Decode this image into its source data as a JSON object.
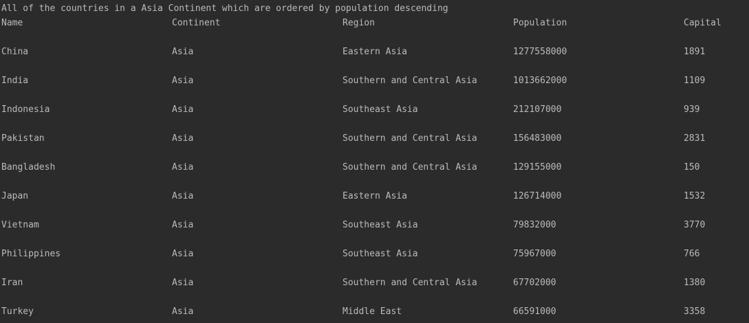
{
  "console": {
    "title_line": "All of the countries in a Asia Continent which are ordered by population descending",
    "headers": [
      "Name",
      "Continent",
      "Region",
      "Population",
      "Capital"
    ],
    "rows": [
      [
        "China",
        "Asia",
        "Eastern Asia",
        "1277558000",
        "1891"
      ],
      [
        "India",
        "Asia",
        "Southern and Central Asia",
        "1013662000",
        "1109"
      ],
      [
        "Indonesia",
        "Asia",
        "Southeast Asia",
        "212107000",
        "939"
      ],
      [
        "Pakistan",
        "Asia",
        "Southern and Central Asia",
        "156483000",
        "2831"
      ],
      [
        "Bangladesh",
        "Asia",
        "Southern and Central Asia",
        "129155000",
        "150"
      ],
      [
        "Japan",
        "Asia",
        "Eastern Asia",
        "126714000",
        "1532"
      ],
      [
        "Vietnam",
        "Asia",
        "Southeast Asia",
        "79832000",
        "3770"
      ],
      [
        "Philippines",
        "Asia",
        "Southeast Asia",
        "75967000",
        "766"
      ],
      [
        "Iran",
        "Asia",
        "Southern and Central Asia",
        "67702000",
        "1380"
      ],
      [
        "Turkey",
        "Asia",
        "Middle East",
        "66591000",
        "3358"
      ]
    ]
  }
}
